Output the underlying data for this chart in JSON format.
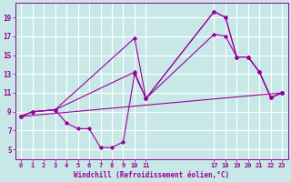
{
  "background_color": "#c8e8e8",
  "line_color": "#990099",
  "grid_color": "#ffffff",
  "xlabel": "Windchill (Refroidissement éolien,°C)",
  "xlabel_color": "#990099",
  "tick_color": "#990099",
  "xlim": [
    -0.5,
    23.5
  ],
  "ylim": [
    4,
    20.5
  ],
  "xticks": [
    0,
    1,
    2,
    3,
    4,
    5,
    6,
    7,
    8,
    9,
    10,
    11,
    17,
    18,
    19,
    20,
    21,
    22,
    23
  ],
  "yticks": [
    5,
    7,
    9,
    11,
    13,
    15,
    17,
    19
  ],
  "line1_x": [
    0,
    1,
    3,
    10,
    11,
    17,
    18,
    19,
    20,
    21,
    22,
    23
  ],
  "line1_y": [
    8.5,
    9.0,
    9.2,
    16.8,
    10.4,
    19.6,
    19.0,
    14.8,
    14.8,
    13.2,
    10.5,
    11.0
  ],
  "line2_x": [
    0,
    1,
    3,
    4,
    5,
    6,
    7,
    8,
    9,
    10,
    11,
    17,
    18,
    19,
    20,
    21,
    22,
    23
  ],
  "line2_y": [
    8.5,
    9.0,
    9.2,
    7.8,
    7.2,
    7.2,
    5.2,
    5.2,
    5.8,
    13.0,
    10.4,
    19.6,
    19.0,
    14.8,
    14.8,
    13.2,
    10.5,
    11.0
  ],
  "line3_x": [
    0,
    1,
    3,
    10,
    11,
    17,
    18,
    19,
    20,
    21,
    22,
    23
  ],
  "line3_y": [
    8.5,
    9.0,
    9.2,
    13.2,
    10.4,
    17.2,
    17.0,
    14.8,
    14.8,
    13.2,
    10.5,
    11.0
  ],
  "line4_x": [
    0,
    23
  ],
  "line4_y": [
    8.5,
    11.0
  ]
}
